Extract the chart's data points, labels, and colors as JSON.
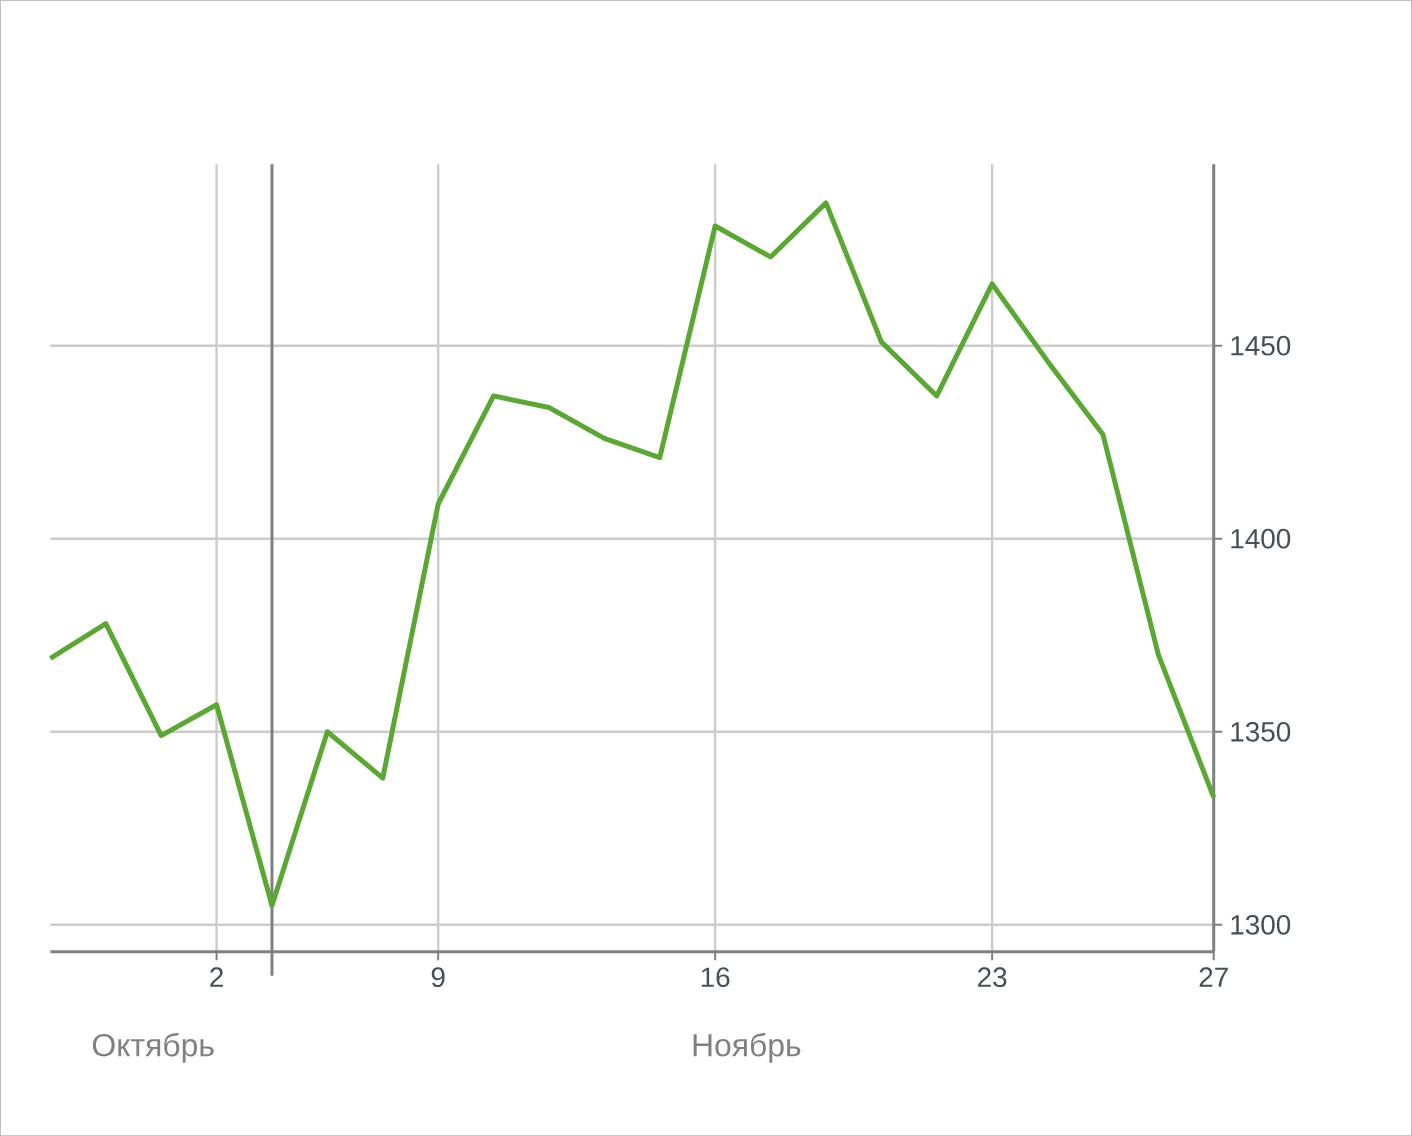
{
  "chart_data": {
    "type": "line",
    "categories": [
      null,
      null,
      null,
      "2",
      null,
      null,
      null,
      "9",
      null,
      null,
      null,
      null,
      "16",
      null,
      null,
      null,
      null,
      "23",
      null,
      null,
      null,
      "27"
    ],
    "series": [
      {
        "color": "#5aa832",
        "values": [
          1369,
          1378,
          1349,
          1357,
          1305,
          1350,
          1338,
          1409,
          1437,
          1434,
          1426,
          1421,
          1481,
          1473,
          1487,
          1451,
          1437,
          1466,
          1446,
          1427,
          1370,
          1333
        ]
      }
    ],
    "ylim": [
      1293,
      1497
    ],
    "yticks": [
      1300,
      1350,
      1400,
      1450
    ],
    "annotations": [
      "Октябрь",
      "Ноябрь"
    ],
    "grid": true,
    "marker": "none",
    "line_style": "solid"
  }
}
